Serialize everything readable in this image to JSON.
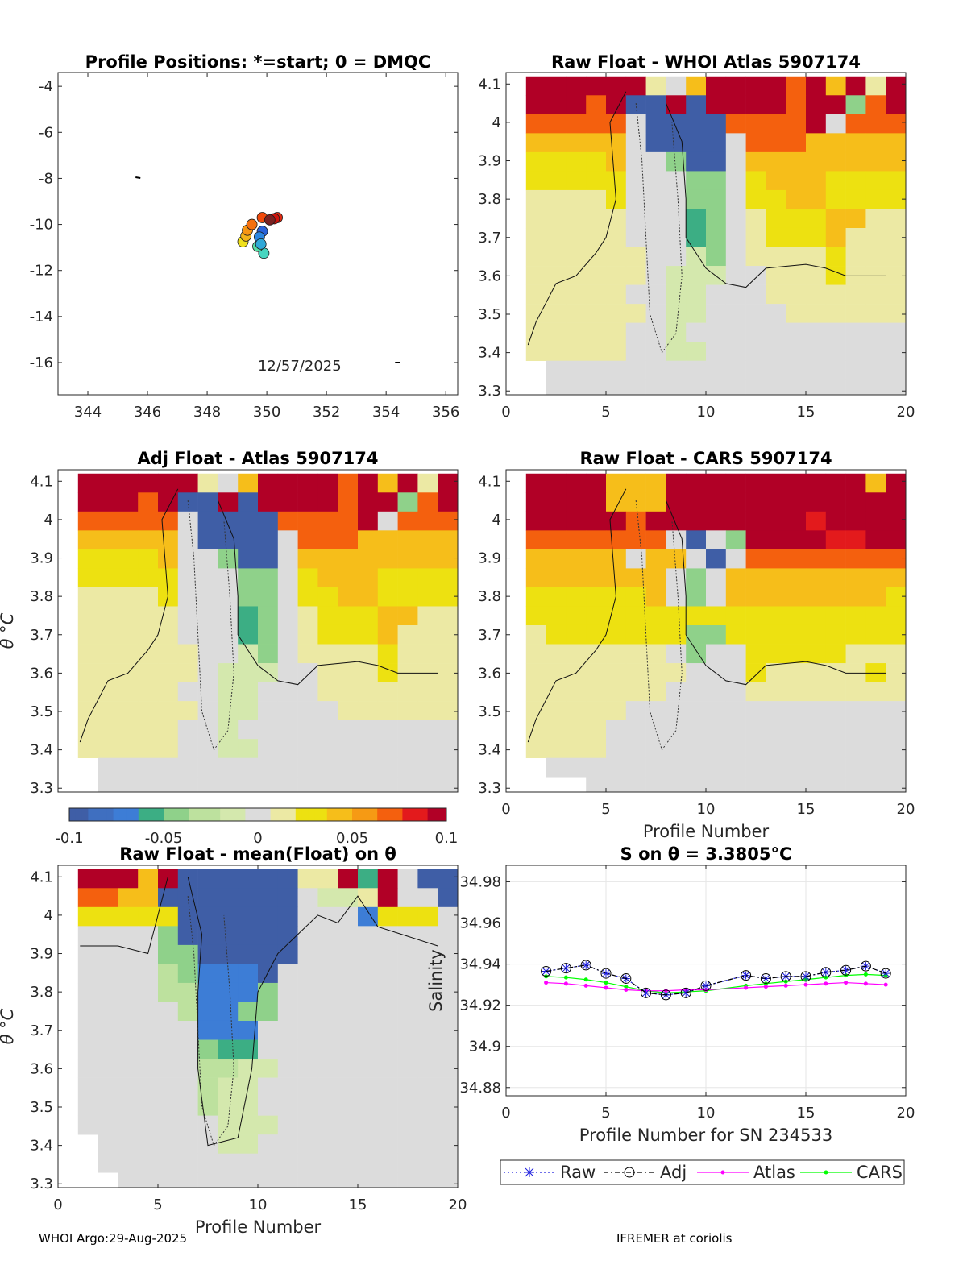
{
  "footer": {
    "left": "WHOI Argo:29-Aug-2025",
    "right": "IFREMER at coriolis"
  },
  "colorbar": {
    "ticks": [
      "-0.1",
      "-0.05",
      "0",
      "0.05",
      "0.1"
    ],
    "range": [
      -0.1,
      0.1
    ]
  },
  "colors": {
    "dark_red": "#b10026",
    "red": "#e31a1c",
    "orange_red": "#f4600e",
    "orange": "#f69a14",
    "amber": "#f6be1a",
    "yellow": "#ede111",
    "pale_yellow": "#ece9a4",
    "neutral": "#dcdcdc",
    "pale_green": "#d4e8ad",
    "light_green": "#bde19e",
    "green": "#8fd18a",
    "sea_green": "#3cae84",
    "dark_blue": "#3f5ea6",
    "mid_blue": "#3f6fc0",
    "blue": "#3d7dd6",
    "raw_line": "#1c1cde",
    "atlas_line": "#ff00ff",
    "cars_line": "#00ff00"
  },
  "chart_data": [
    {
      "type": "scatter",
      "panel": "positions",
      "title": "Profile Positions: *=start; 0 = DMQC",
      "xlim": [
        343,
        356.4
      ],
      "ylim": [
        -17.4,
        -3.4
      ],
      "xticks": [
        "344",
        "346",
        "348",
        "350",
        "352",
        "354",
        "356"
      ],
      "yticks": [
        "-4",
        "-6",
        "-8",
        "-10",
        "-12",
        "-14",
        "-16"
      ],
      "annotation": "12/57/2025",
      "points": [
        {
          "x": 349.9,
          "y": -11.25,
          "c": "#46d6c0"
        },
        {
          "x": 349.7,
          "y": -10.95,
          "c": "#58dea4"
        },
        {
          "x": 349.2,
          "y": -10.75,
          "c": "#f0e01c"
        },
        {
          "x": 349.3,
          "y": -10.5,
          "c": "#f2b21a"
        },
        {
          "x": 349.35,
          "y": -10.25,
          "c": "#f79514"
        },
        {
          "x": 349.5,
          "y": -10.0,
          "c": "#f4700f"
        },
        {
          "x": 349.85,
          "y": -9.7,
          "c": "#f04a0c"
        },
        {
          "x": 350.35,
          "y": -9.7,
          "c": "#e02a12"
        },
        {
          "x": 350.25,
          "y": -9.75,
          "c": "#d0140d"
        },
        {
          "x": 350.1,
          "y": -9.8,
          "c": "#7a2222"
        },
        {
          "x": 349.85,
          "y": -10.3,
          "c": "#2a62d8"
        },
        {
          "x": 349.75,
          "y": -10.55,
          "c": "#2c86e0"
        },
        {
          "x": 349.8,
          "y": -10.85,
          "c": "#30a8d8"
        }
      ]
    },
    {
      "type": "heatmap",
      "panel": "raw_atlas",
      "title": "Raw Float - WHOI Atlas  5907174",
      "xlim": [
        0,
        20
      ],
      "ylim": [
        3.29,
        4.13
      ],
      "xticks": [
        "0",
        "5",
        "10",
        "15",
        "20"
      ],
      "yticks": [
        "3.3",
        "3.4",
        "3.5",
        "3.6",
        "3.7",
        "3.8",
        "3.9",
        "4",
        "4.1"
      ],
      "pattern": "A"
    },
    {
      "type": "heatmap",
      "panel": "adj_atlas",
      "title": "Adj Float - Atlas  5907174",
      "ylabel": "θ °C",
      "xlim": [
        0,
        20
      ],
      "ylim": [
        3.29,
        4.13
      ],
      "yticks": [
        "3.3",
        "3.4",
        "3.5",
        "3.6",
        "3.7",
        "3.8",
        "3.9",
        "4",
        "4.1"
      ],
      "pattern": "A"
    },
    {
      "type": "heatmap",
      "panel": "raw_cars",
      "title": "Raw Float - CARS  5907174",
      "xlabel": "Profile Number",
      "xlim": [
        0,
        20
      ],
      "ylim": [
        3.29,
        4.13
      ],
      "xticks": [
        "0",
        "5",
        "10",
        "15",
        "20"
      ],
      "yticks": [
        "3.3",
        "3.4",
        "3.5",
        "3.6",
        "3.7",
        "3.8",
        "3.9",
        "4",
        "4.1"
      ],
      "pattern": "C"
    },
    {
      "type": "heatmap",
      "panel": "raw_mean",
      "title": "Raw Float - mean(Float) on θ",
      "xlabel": "Profile Number",
      "ylabel": "θ °C",
      "xlim": [
        0,
        20
      ],
      "ylim": [
        3.29,
        4.13
      ],
      "xticks": [
        "0",
        "5",
        "10",
        "15",
        "20"
      ],
      "yticks": [
        "3.3",
        "3.4",
        "3.5",
        "3.6",
        "3.7",
        "3.8",
        "3.9",
        "4",
        "4.1"
      ],
      "pattern": "M"
    },
    {
      "type": "line",
      "panel": "salinity",
      "title": "S on θ = 3.3805°C",
      "xlabel": "Profile Number for SN 234533",
      "ylabel": "Salinity",
      "xlim": [
        0,
        20
      ],
      "ylim": [
        34.876,
        34.988
      ],
      "xticks": [
        "0",
        "5",
        "10",
        "15",
        "20"
      ],
      "yticks": [
        "34.88",
        "34.9",
        "34.92",
        "34.94",
        "34.96",
        "34.98"
      ],
      "x": [
        2,
        3,
        4,
        5,
        6,
        7,
        8,
        9,
        10,
        12,
        13,
        14,
        15,
        16,
        17,
        18,
        19
      ],
      "series": [
        {
          "name": "Raw",
          "values": [
            34.9365,
            34.938,
            34.9395,
            34.9355,
            34.933,
            34.926,
            34.925,
            34.926,
            34.9295,
            34.9345,
            34.933,
            34.934,
            34.934,
            34.936,
            34.937,
            34.939,
            34.9355
          ]
        },
        {
          "name": "Adj",
          "values": [
            34.9365,
            34.938,
            34.9395,
            34.9355,
            34.933,
            34.926,
            34.925,
            34.926,
            34.9295,
            34.9345,
            34.933,
            34.934,
            34.934,
            34.936,
            34.937,
            34.939,
            34.9355
          ]
        },
        {
          "name": "Atlas",
          "values": [
            34.931,
            34.9305,
            34.9295,
            34.9285,
            34.9275,
            34.927,
            34.927,
            34.9275,
            34.9275,
            34.9285,
            34.929,
            34.9295,
            34.93,
            34.9305,
            34.931,
            34.9305,
            34.93
          ]
        },
        {
          "name": "CARS",
          "values": [
            34.934,
            34.9335,
            34.9325,
            34.931,
            34.929,
            34.927,
            34.926,
            34.9265,
            34.927,
            34.9295,
            34.9305,
            34.9315,
            34.9325,
            34.9335,
            34.9345,
            34.935,
            34.9345
          ]
        }
      ],
      "legend": [
        "Raw",
        "Adj",
        "Atlas",
        "CARS"
      ]
    }
  ]
}
